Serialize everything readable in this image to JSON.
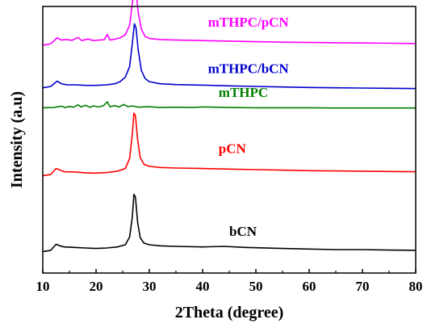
{
  "chart_data": {
    "type": "line",
    "xlabel": "2Theta (degree)",
    "ylabel": "Intensity (a.u)",
    "xlim": [
      10,
      80
    ],
    "xticks": [
      10,
      20,
      30,
      40,
      50,
      60,
      70,
      80
    ],
    "ylim": [
      0,
      100
    ],
    "grid": false,
    "legend": "labels placed next to each curve",
    "series": [
      {
        "name": "bCN",
        "color": "#000000",
        "offset": 2,
        "points": [
          [
            10,
            8.0
          ],
          [
            11.5,
            8.5
          ],
          [
            12.5,
            10.8
          ],
          [
            13.2,
            10.2
          ],
          [
            14,
            9.8
          ],
          [
            16,
            9.6
          ],
          [
            18,
            9.4
          ],
          [
            20,
            9.2
          ],
          [
            22,
            9.4
          ],
          [
            24,
            9.8
          ],
          [
            25.5,
            10.6
          ],
          [
            26.3,
            13.5
          ],
          [
            26.8,
            21
          ],
          [
            27.1,
            29.5
          ],
          [
            27.4,
            28.5
          ],
          [
            27.8,
            19
          ],
          [
            28.3,
            13.2
          ],
          [
            29,
            11.2
          ],
          [
            30,
            10.6
          ],
          [
            32,
            10.2
          ],
          [
            35,
            10.0
          ],
          [
            40,
            9.8
          ],
          [
            44,
            10.0
          ],
          [
            48,
            9.6
          ],
          [
            55,
            9.2
          ],
          [
            60,
            9.0
          ],
          [
            65,
            8.8
          ],
          [
            70,
            8.8
          ],
          [
            75,
            8.6
          ],
          [
            80,
            8.5
          ]
        ]
      },
      {
        "name": "pCN",
        "color": "#ff0000",
        "offset": 33,
        "points": [
          [
            10,
            36.5
          ],
          [
            11.5,
            37.0
          ],
          [
            12.5,
            39.2
          ],
          [
            13.3,
            38.6
          ],
          [
            14,
            38.0
          ],
          [
            16,
            37.9
          ],
          [
            18,
            37.6
          ],
          [
            20,
            37.5
          ],
          [
            22,
            37.7
          ],
          [
            24,
            38.2
          ],
          [
            25.5,
            39.2
          ],
          [
            26.3,
            43.0
          ],
          [
            26.8,
            52.0
          ],
          [
            27.1,
            60.0
          ],
          [
            27.4,
            59.0
          ],
          [
            27.8,
            50.0
          ],
          [
            28.3,
            43.2
          ],
          [
            29,
            40.8
          ],
          [
            30,
            40.0
          ],
          [
            32,
            39.6
          ],
          [
            35,
            39.4
          ],
          [
            40,
            39.2
          ],
          [
            45,
            39.0
          ],
          [
            50,
            38.8
          ],
          [
            55,
            38.6
          ],
          [
            60,
            38.4
          ],
          [
            65,
            38.3
          ],
          [
            70,
            38.2
          ],
          [
            75,
            38.1
          ],
          [
            80,
            38.0
          ]
        ]
      },
      {
        "name": "mTHPC",
        "color": "#008000",
        "offset": 62,
        "points": [
          [
            10,
            62.0
          ],
          [
            12,
            62.1
          ],
          [
            13.5,
            62.6
          ],
          [
            14.2,
            62.1
          ],
          [
            15,
            62.5
          ],
          [
            15.8,
            62.2
          ],
          [
            16.6,
            63.1
          ],
          [
            17.2,
            62.3
          ],
          [
            18,
            62.9
          ],
          [
            18.8,
            62.2
          ],
          [
            19.5,
            62.7
          ],
          [
            20.5,
            62.3
          ],
          [
            21.4,
            62.8
          ],
          [
            22.1,
            64.2
          ],
          [
            22.6,
            62.4
          ],
          [
            23.5,
            62.8
          ],
          [
            24.3,
            62.3
          ],
          [
            25.2,
            63.2
          ],
          [
            26,
            62.4
          ],
          [
            26.8,
            62.7
          ],
          [
            28,
            62.2
          ],
          [
            30,
            62.4
          ],
          [
            32,
            62.1
          ],
          [
            35,
            62.2
          ],
          [
            38,
            62.1
          ],
          [
            40,
            62.3
          ],
          [
            45,
            62.1
          ],
          [
            50,
            62.0
          ],
          [
            55,
            62.0
          ],
          [
            60,
            62.0
          ],
          [
            65,
            61.9
          ],
          [
            70,
            61.9
          ],
          [
            75,
            61.9
          ],
          [
            80,
            61.9
          ]
        ]
      },
      {
        "name": "mTHPC/bCN",
        "color": "#0000cd",
        "offset": 67,
        "points": [
          [
            10,
            69.5
          ],
          [
            11.5,
            70.0
          ],
          [
            12.7,
            72.0
          ],
          [
            13.5,
            71.0
          ],
          [
            14.5,
            70.6
          ],
          [
            16,
            70.6
          ],
          [
            18,
            70.4
          ],
          [
            20,
            70.4
          ],
          [
            22,
            70.6
          ],
          [
            23.5,
            71.0
          ],
          [
            24.5,
            71.8
          ],
          [
            25.5,
            73.5
          ],
          [
            26.3,
            77.5
          ],
          [
            26.8,
            86.0
          ],
          [
            27.2,
            93.5
          ],
          [
            27.5,
            92.0
          ],
          [
            27.9,
            84.0
          ],
          [
            28.5,
            76.0
          ],
          [
            29.2,
            73.0
          ],
          [
            30,
            71.8
          ],
          [
            32,
            71.0
          ],
          [
            35,
            70.7
          ],
          [
            40,
            70.5
          ],
          [
            45,
            70.2
          ],
          [
            50,
            70.0
          ],
          [
            55,
            69.8
          ],
          [
            60,
            69.6
          ],
          [
            65,
            69.5
          ],
          [
            70,
            69.4
          ],
          [
            75,
            69.3
          ],
          [
            80,
            69.2
          ]
        ]
      },
      {
        "name": "mTHPC/pCN",
        "color": "#ff00ff",
        "offset": 83,
        "points": [
          [
            10,
            85.5
          ],
          [
            11.5,
            86.0
          ],
          [
            12.7,
            88.2
          ],
          [
            13.5,
            87.4
          ],
          [
            14.5,
            87.6
          ],
          [
            15.5,
            87.3
          ],
          [
            16.6,
            88.4
          ],
          [
            17.3,
            87.2
          ],
          [
            18.5,
            87.8
          ],
          [
            19.5,
            87.2
          ],
          [
            20.5,
            87.4
          ],
          [
            21.5,
            87.5
          ],
          [
            22.1,
            89.5
          ],
          [
            22.6,
            87.4
          ],
          [
            23.5,
            87.7
          ],
          [
            24.5,
            88.2
          ],
          [
            25.5,
            89.4
          ],
          [
            26.3,
            93.0
          ],
          [
            26.8,
            101.0
          ],
          [
            27.2,
            107.5
          ],
          [
            27.5,
            106.0
          ],
          [
            27.9,
            98.0
          ],
          [
            28.5,
            91.5
          ],
          [
            29.2,
            88.8
          ],
          [
            30,
            88.0
          ],
          [
            32,
            87.6
          ],
          [
            35,
            87.4
          ],
          [
            40,
            87.2
          ],
          [
            45,
            87.0
          ],
          [
            50,
            86.8
          ],
          [
            55,
            86.6
          ],
          [
            60,
            86.5
          ],
          [
            65,
            86.4
          ],
          [
            70,
            86.3
          ],
          [
            75,
            86.2
          ],
          [
            80,
            86.1
          ]
        ]
      }
    ],
    "annotations": [
      {
        "text": "mTHPC/pCN",
        "x": 41,
        "y": 92.5,
        "color": "#ff00ff"
      },
      {
        "text": "mTHPC/bCN",
        "x": 41,
        "y": 75,
        "color": "#0000cd"
      },
      {
        "text": "mTHPC",
        "x": 43,
        "y": 66,
        "color": "#008000"
      },
      {
        "text": "pCN",
        "x": 43,
        "y": 45,
        "color": "#ff0000"
      },
      {
        "text": "bCN",
        "x": 45,
        "y": 14,
        "color": "#000000"
      }
    ]
  }
}
